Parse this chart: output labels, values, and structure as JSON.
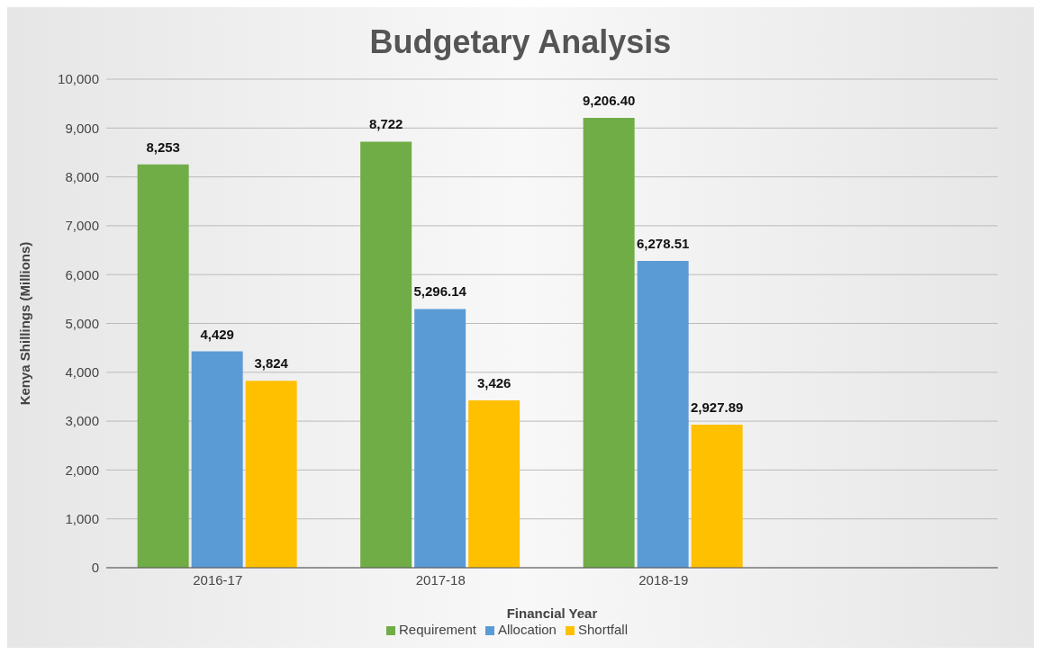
{
  "chart_data": {
    "type": "bar",
    "title": "Budgetary Analysis",
    "xlabel": "Financial Year",
    "ylabel": "Kenya Shillings (Millions)",
    "categories": [
      "2016-17",
      "2017-18",
      "2018-19",
      null
    ],
    "series": [
      {
        "name": "Requirement",
        "color": "#70ad47",
        "values": [
          8253,
          8722,
          9206.4,
          null
        ],
        "value_labels": [
          "8,253",
          "8,722",
          "9,206.40",
          null
        ]
      },
      {
        "name": "Allocation",
        "color": "#5b9bd5",
        "values": [
          4429,
          5296.14,
          6278.51,
          null
        ],
        "value_labels": [
          "4,429",
          "5,296.14",
          "6,278.51",
          null
        ]
      },
      {
        "name": "Shortfall",
        "color": "#ffc000",
        "values": [
          3824,
          3426,
          2927.89,
          null
        ],
        "value_labels": [
          "3,824",
          "3,426",
          "2,927.89",
          null
        ]
      }
    ],
    "ylim": [
      0,
      10000
    ],
    "yticks": [
      0,
      {
        "value": 1000,
        "label": "1,000"
      },
      {
        "value": 2000,
        "label": "2,000"
      },
      {
        "value": 3000,
        "label": "3,000"
      },
      {
        "value": 4000,
        "label": "4,000"
      },
      {
        "value": 5000,
        "label": "5,000"
      },
      {
        "value": 6000,
        "label": "6,000"
      },
      {
        "value": 7000,
        "label": "7,000"
      },
      {
        "value": 8000,
        "label": "8,000"
      },
      {
        "value": 9000,
        "label": "9,000"
      },
      {
        "value": 10000,
        "label": "10,000"
      }
    ],
    "grid": "y",
    "legend": "bottom"
  }
}
